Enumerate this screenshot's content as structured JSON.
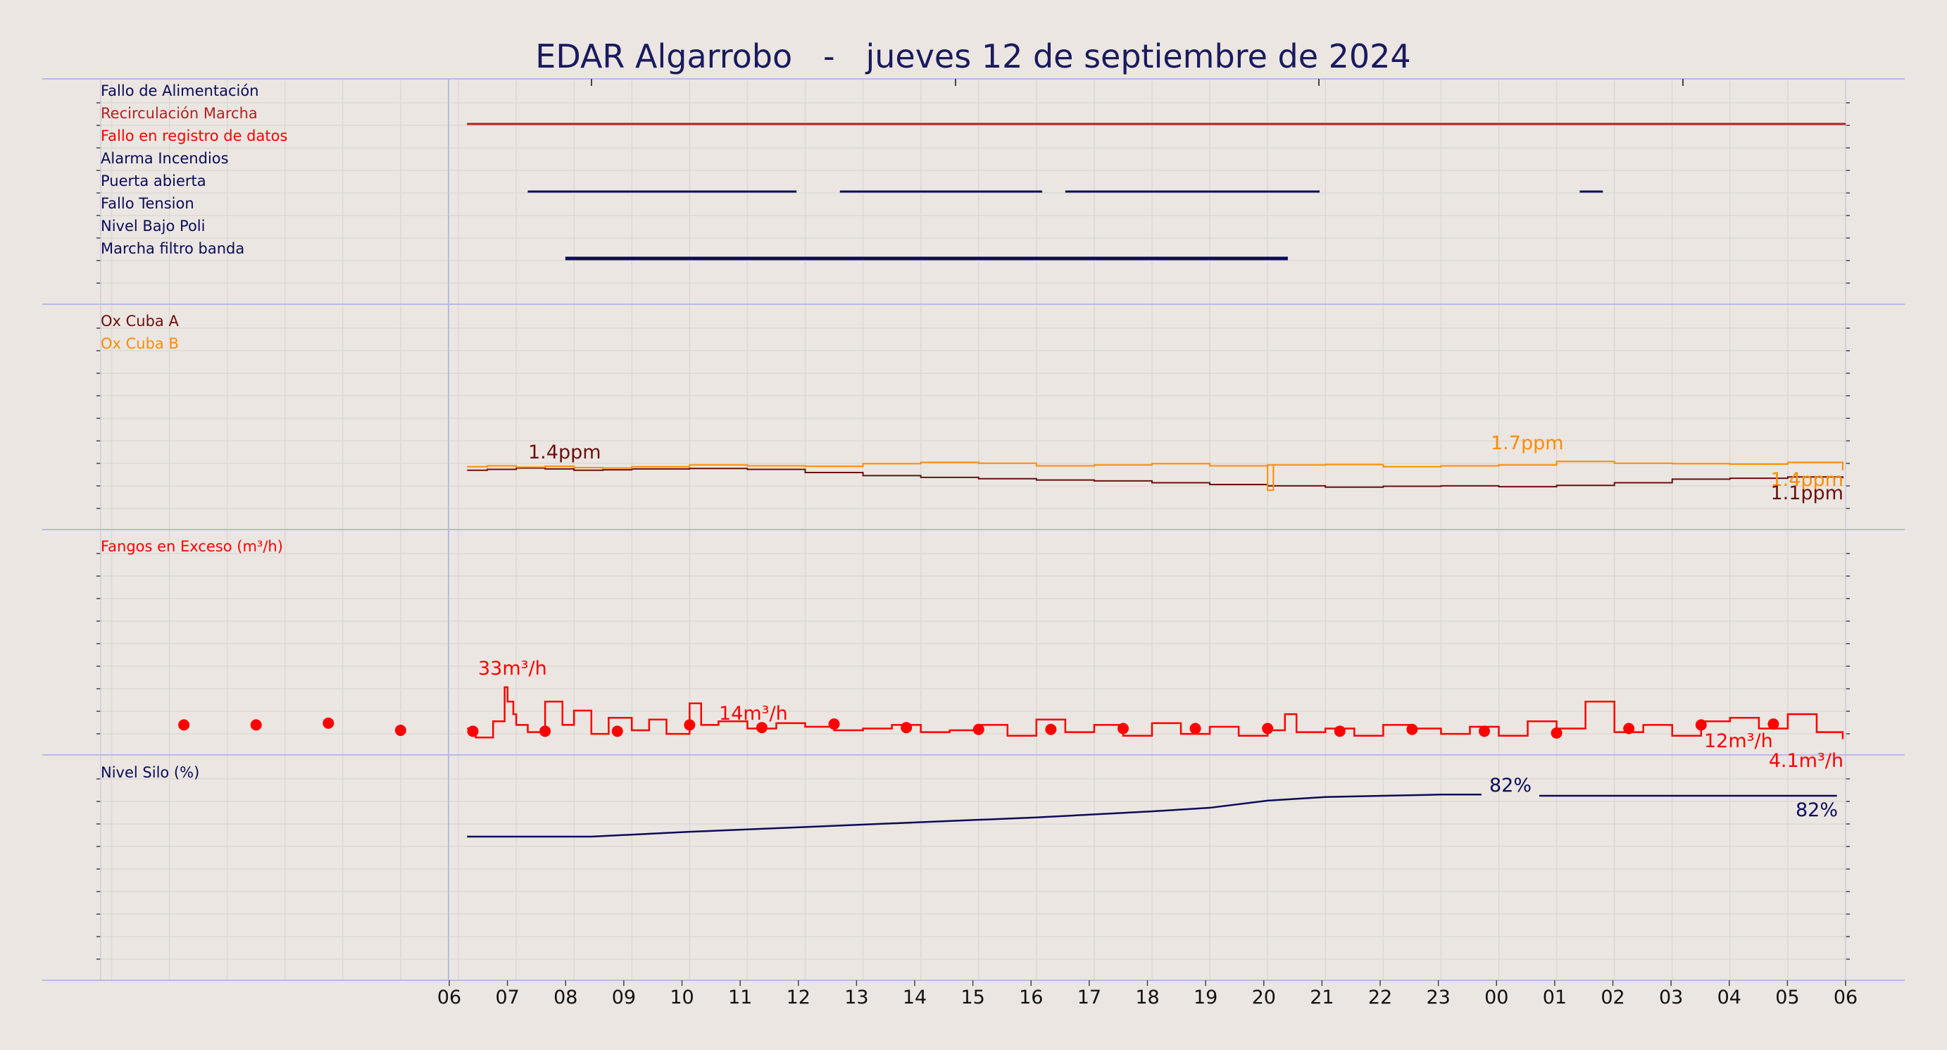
{
  "title": "EDAR Algarrobo   -   jueves 12 de septiembre de 2024",
  "colors": {
    "background": "#ebe6e1",
    "title": "#1a1a5e",
    "navy": "#0b0b5a",
    "recirc": "#b22222",
    "fallo_registro": "#ff0000",
    "ox_a": "#6b0f0f",
    "ox_b": "#ff8c00",
    "fangos": "#ff0000",
    "silo": "#0b0b5a",
    "divider": "#b9b9e6",
    "grid": "#dcd8d4"
  },
  "x_axis": {
    "tick_labels": [
      "06",
      "07",
      "08",
      "09",
      "10",
      "11",
      "12",
      "13",
      "14",
      "15",
      "16",
      "17",
      "18",
      "19",
      "20",
      "21",
      "22",
      "23",
      "00",
      "01",
      "02",
      "03",
      "04",
      "05",
      "06"
    ]
  },
  "chart_data": [
    {
      "type": "line",
      "panel": "status",
      "x_unit": "hours since 06:00",
      "series": [
        {
          "name": "Fallo de Alimentación",
          "color": "#0b0b5a",
          "intervals": []
        },
        {
          "name": "Recirculación Marcha",
          "color": "#b22222",
          "intervals": [
            [
              0.15,
              24
            ]
          ]
        },
        {
          "name": "Fallo en registro de datos",
          "color": "#ff0000",
          "intervals": []
        },
        {
          "name": "Alarma Incendios",
          "color": "#0b0b5a",
          "intervals": []
        },
        {
          "name": "Puerta abierta",
          "color": "#0b0b5a",
          "intervals": [
            [
              1.2,
              5.85
            ],
            [
              6.6,
              10.1
            ],
            [
              10.5,
              14.9
            ],
            [
              19.4,
              19.8
            ]
          ]
        },
        {
          "name": "Fallo Tension",
          "color": "#0b0b5a",
          "intervals": []
        },
        {
          "name": "Nivel Bajo Poli",
          "color": "#0b0b5a",
          "intervals": []
        },
        {
          "name": "Marcha filtro banda",
          "color": "#0b0b5a",
          "intervals": [
            [
              1.85,
              14.35
            ]
          ]
        }
      ]
    },
    {
      "type": "line",
      "panel": "oxygen",
      "unit": "ppm",
      "series": [
        {
          "name": "Ox Cuba A",
          "color": "#6b0f0f",
          "x": [
            0.15,
            0.5,
            1,
            1.5,
            2,
            2.5,
            3,
            4,
            5,
            6,
            7,
            8,
            9,
            10,
            11,
            12,
            13,
            14,
            15,
            16,
            17,
            18,
            19,
            20,
            21,
            22,
            23,
            23.95
          ],
          "y": [
            1.4,
            1.42,
            1.45,
            1.43,
            1.4,
            1.41,
            1.43,
            1.44,
            1.42,
            1.35,
            1.28,
            1.24,
            1.21,
            1.18,
            1.16,
            1.12,
            1.08,
            1.05,
            1.02,
            1.04,
            1.05,
            1.03,
            1.06,
            1.12,
            1.2,
            1.22,
            1.25,
            1.22
          ]
        },
        {
          "name": "Ox Cuba B",
          "color": "#ff8c00",
          "x": [
            0.15,
            0.5,
            1,
            1.5,
            2,
            2.5,
            3,
            4,
            5,
            6,
            7,
            8,
            9,
            10,
            11,
            12,
            13,
            14,
            15,
            16,
            17,
            18,
            19,
            20,
            21,
            22,
            23,
            23.95
          ],
          "y": [
            1.48,
            1.5,
            1.47,
            1.49,
            1.46,
            1.45,
            1.48,
            1.52,
            1.5,
            1.49,
            1.55,
            1.58,
            1.56,
            1.5,
            1.52,
            1.55,
            1.5,
            1.52,
            1.53,
            1.48,
            1.5,
            1.52,
            1.6,
            1.56,
            1.55,
            1.54,
            1.58,
            1.4
          ]
        }
      ],
      "annotations": [
        "1.4ppm",
        "1.7ppm",
        "1.4ppm",
        "1.1ppm"
      ]
    },
    {
      "type": "line",
      "panel": "fangos",
      "unit": "m³/h",
      "series": [
        {
          "name": "Fangos en Exceso (m³/h)",
          "color": "#ff0000",
          "x": [
            0.15,
            0.3,
            0.6,
            0.8,
            0.85,
            0.95,
            1.0,
            1.2,
            1.5,
            1.8,
            2.0,
            2.3,
            2.6,
            3.0,
            3.3,
            3.6,
            4.0,
            4.2,
            4.5,
            5.0,
            5.5,
            6.0,
            6.5,
            7.0,
            7.5,
            8.0,
            8.5,
            9.0,
            9.5,
            10.0,
            10.5,
            11.0,
            11.5,
            12.0,
            12.5,
            13.0,
            13.5,
            14.0,
            14.3,
            14.5,
            15.0,
            15.5,
            16.0,
            16.5,
            17.0,
            17.5,
            18.0,
            18.5,
            19.0,
            19.5,
            20.0,
            20.5,
            21.0,
            21.5,
            22.0,
            22.5,
            23.0,
            23.5,
            23.95
          ],
          "y": [
            10,
            5,
            14,
            33,
            25,
            18,
            12,
            8,
            25,
            12,
            20,
            7,
            16,
            9,
            15,
            7,
            24,
            12,
            14,
            10,
            13,
            11,
            9,
            10,
            12,
            8,
            9,
            12,
            6,
            15,
            8,
            12,
            6,
            13,
            7,
            11,
            6,
            9,
            18,
            8,
            10,
            6,
            12,
            10,
            7,
            11,
            6,
            14,
            10,
            25,
            8,
            12,
            6,
            14,
            16,
            10,
            18,
            8,
            4.1
          ]
        },
        {
          "name": "Fangos en Exceso (m³/h) puntos",
          "color": "#ff0000",
          "x": [
            -4.75,
            -3.5,
            -2.25,
            -1.0,
            0.25,
            1.5,
            2.75,
            4.0,
            5.25,
            6.5,
            7.75,
            9.0,
            10.25,
            11.5,
            12.75,
            14.0,
            15.25,
            16.5,
            17.75,
            19.0,
            20.25,
            21.5,
            22.75
          ],
          "y": [
            12,
            12,
            13,
            9,
            8.5,
            8.5,
            8.5,
            12,
            10.5,
            12.5,
            10.5,
            9.5,
            9.5,
            10,
            10,
            10,
            8.5,
            9.5,
            8.5,
            7.5,
            10,
            12,
            12.5
          ]
        }
      ],
      "annotations": [
        "33m³/h",
        "14m³/h",
        "12m³/h",
        "4.1m³/h"
      ]
    },
    {
      "type": "line",
      "panel": "silo",
      "unit": "%",
      "series": [
        {
          "name": "Nivel Silo (%)",
          "color": "#0b0b5a",
          "x": [
            0.15,
            2.3,
            4.0,
            6.0,
            8.0,
            10.0,
            12.0,
            13.0,
            14.0,
            15.0,
            16.0,
            17.0,
            17.7,
            17.9,
            18.7,
            19.0,
            20.0,
            21.0,
            22.0,
            23.0,
            23.85
          ],
          "y": [
            48,
            48,
            52,
            56,
            60,
            64,
            69,
            72,
            78,
            81,
            82,
            83,
            83,
            81,
            82,
            82,
            82,
            82,
            82,
            82,
            82
          ]
        }
      ],
      "annotations": [
        "82%",
        "82%"
      ]
    }
  ]
}
